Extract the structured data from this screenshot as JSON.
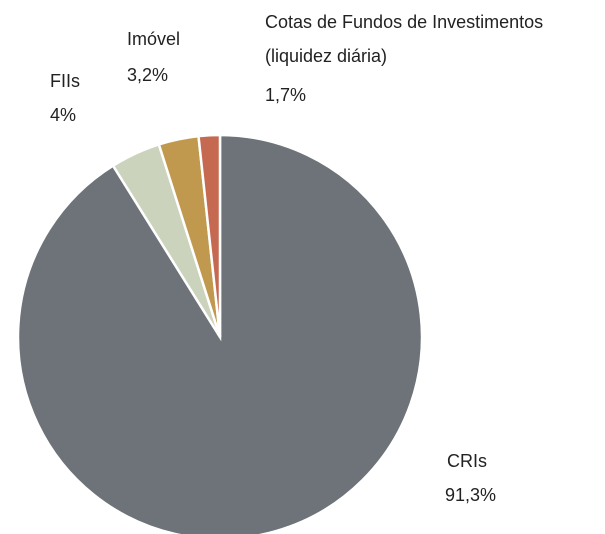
{
  "chart_data": {
    "type": "pie",
    "categories": [
      "CRIs",
      "FIIs",
      "Imóvel",
      "Cotas de Fundos de Investimentos (liquidez diária)"
    ],
    "values": [
      91.3,
      4,
      3.2,
      1.7
    ],
    "value_labels": [
      "91,3%",
      "4%",
      "3,2%",
      "1,7%"
    ],
    "colors": [
      "#6d7378",
      "#ccd3bd",
      "#c0994f",
      "#c56a50"
    ]
  }
}
